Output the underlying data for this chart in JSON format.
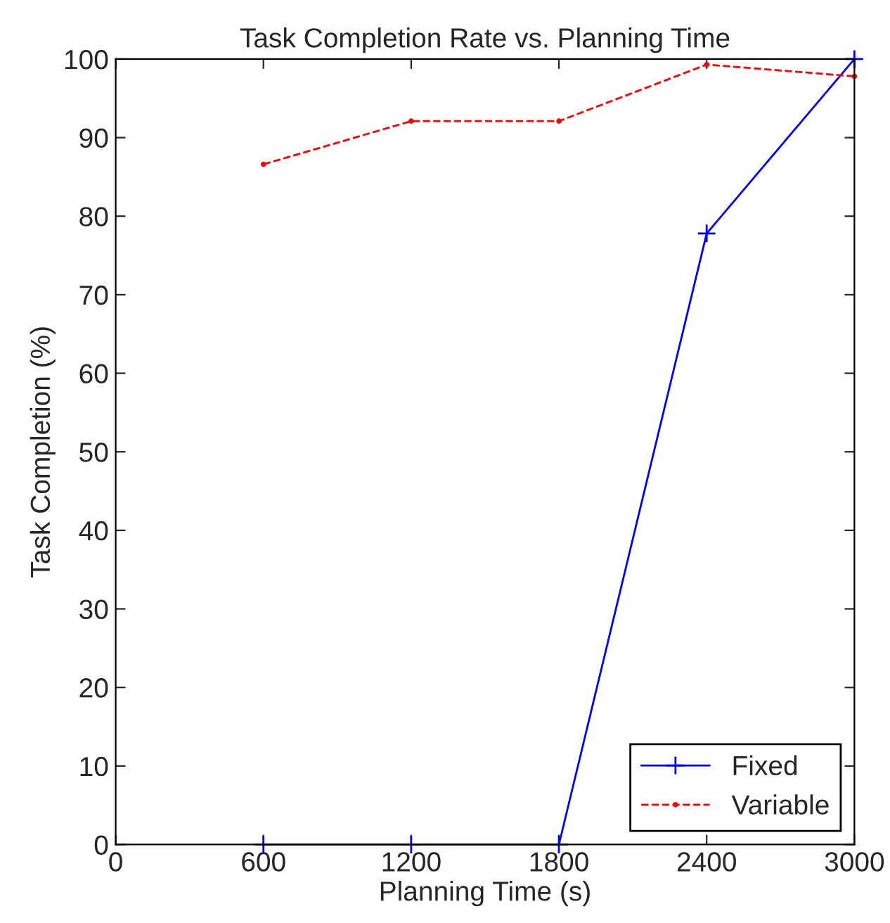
{
  "chart_data": {
    "type": "line",
    "title": "Task Completion Rate vs. Planning Time",
    "xlabel": "Planning Time (s)",
    "ylabel": "Task Completion (%)",
    "x": [
      600,
      1200,
      1800,
      2400,
      3000
    ],
    "series": [
      {
        "name": "Fixed",
        "color": "#0000ff",
        "marker": "cross",
        "line_style": "solid",
        "values": [
          0,
          0,
          0,
          77.8,
          100
        ]
      },
      {
        "name": "Variable",
        "color": "#ff0000",
        "marker": "circle",
        "line_style": "dashed",
        "values": [
          86.6,
          92.1,
          92.1,
          99.3,
          97.8
        ]
      }
    ],
    "xlim": [
      0,
      3000
    ],
    "xticks": [
      0,
      600,
      1200,
      1800,
      2400,
      3000
    ],
    "ylim": [
      0,
      100
    ],
    "yticks": [
      0,
      10,
      20,
      30,
      40,
      50,
      60,
      70,
      80,
      90,
      100
    ],
    "grid": false,
    "legend": "bottom right"
  }
}
